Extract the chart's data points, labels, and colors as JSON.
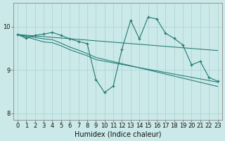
{
  "xlabel": "Humidex (Indice chaleur)",
  "ylabel": "",
  "xlim": [
    -0.5,
    23.5
  ],
  "ylim": [
    7.85,
    10.55
  ],
  "yticks": [
    8,
    9,
    10
  ],
  "xticks": [
    0,
    1,
    2,
    3,
    4,
    5,
    6,
    7,
    8,
    9,
    10,
    11,
    12,
    13,
    14,
    15,
    16,
    17,
    18,
    19,
    20,
    21,
    22,
    23
  ],
  "bg_color": "#cce9e9",
  "grid_color": "#aed4d4",
  "line_color": "#1e7a72",
  "line1": {
    "x": [
      0,
      1,
      2,
      3,
      4,
      5,
      6,
      7,
      8,
      9,
      10,
      11,
      12,
      13,
      14,
      15,
      16,
      17,
      18,
      19,
      20,
      21,
      22,
      23
    ],
    "y": [
      9.82,
      9.73,
      9.8,
      9.83,
      9.87,
      9.8,
      9.72,
      9.66,
      9.61,
      8.78,
      8.48,
      8.63,
      9.48,
      10.15,
      9.72,
      10.22,
      10.18,
      9.85,
      9.73,
      9.58,
      9.12,
      9.2,
      8.83,
      8.74
    ]
  },
  "line2": {
    "x": [
      0,
      3,
      4,
      5,
      6,
      7,
      8,
      9,
      23
    ],
    "y": [
      9.82,
      9.72,
      9.7,
      9.62,
      9.53,
      9.46,
      9.38,
      9.29,
      8.62
    ]
  },
  "line3": {
    "x": [
      0,
      3,
      4,
      5,
      6,
      7,
      8,
      9,
      23
    ],
    "y": [
      9.82,
      9.65,
      9.63,
      9.56,
      9.47,
      9.4,
      9.33,
      9.24,
      8.72
    ]
  },
  "line4": {
    "x": [
      0,
      23
    ],
    "y": [
      9.82,
      9.45
    ]
  },
  "title_fontsize": 7,
  "label_fontsize": 7,
  "tick_fontsize": 6
}
